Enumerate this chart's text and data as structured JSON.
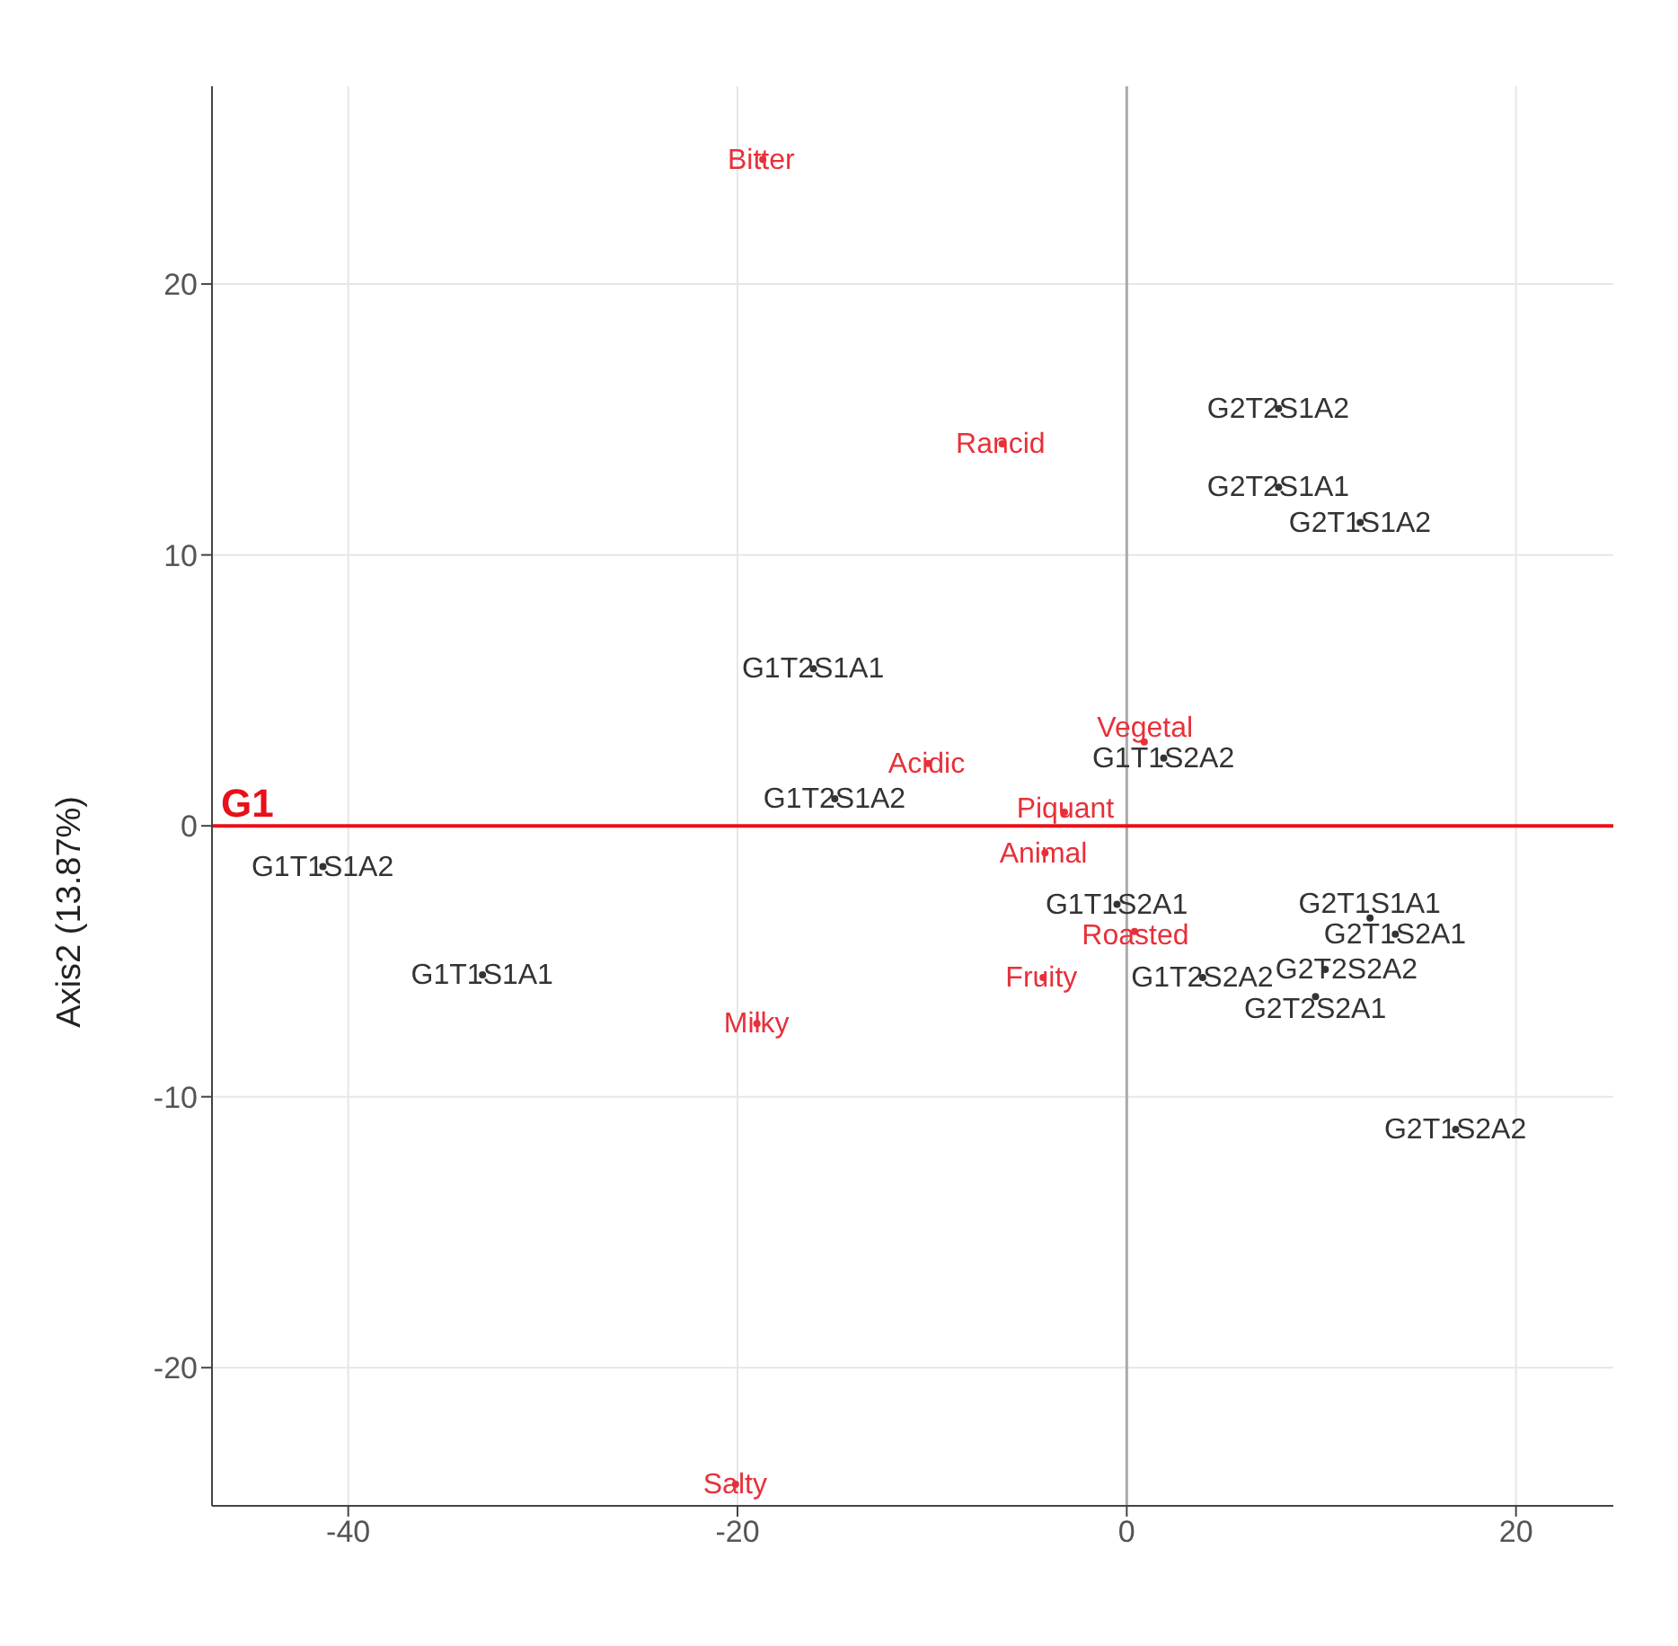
{
  "chart_data": {
    "type": "scatter",
    "ylabel": "Axis2 (13.87%)",
    "marker": "circle",
    "grid": true,
    "xlim": [
      -47,
      25
    ],
    "xticks": [
      -40,
      -20,
      0,
      20
    ],
    "ylim": [
      -25.1,
      27.3
    ],
    "yticks": [
      -20,
      -10,
      0,
      10,
      20
    ],
    "series": [
      {
        "color": "#333333",
        "x": [
          7.8,
          7.8,
          12.0,
          -16.1,
          1.9,
          -15.0,
          -41.3,
          -33.1,
          -0.5,
          3.9,
          10.2,
          9.7,
          13.8,
          12.5,
          16.9
        ],
        "values": [
          15.4,
          12.5,
          11.2,
          5.8,
          2.5,
          1.0,
          -1.5,
          -5.5,
          -2.9,
          -5.6,
          -5.3,
          -6.3,
          -4.0,
          -3.4,
          -11.2
        ],
        "value_labels": [
          "G2T2S1A2",
          "G2T2S1A1",
          "G2T1S1A2",
          "G1T2S1A1",
          "G1T1S2A2",
          "G1T2S1A2",
          "G1T1S1A2",
          "G1T1S1A1",
          "G1T1S2A1",
          "G1T2S2A2",
          "G2T2S2A2",
          "G2T2S2A1",
          "G2T1S2A1",
          "G2T1S1A1",
          "G2T1S2A2"
        ]
      },
      {
        "color": "#e8303a",
        "x": [
          -18.7,
          -6.4,
          -10.2,
          0.9,
          -3.2,
          -4.2,
          -19.0,
          0.4,
          -4.3,
          -20.1
        ],
        "values": [
          24.6,
          14.1,
          2.3,
          3.1,
          0.5,
          -1.0,
          -7.3,
          -3.9,
          -5.6,
          -24.3
        ],
        "value_labels": [
          "Bitter",
          "Rancid",
          "Acidic",
          "Vegetal",
          "Piquant",
          "Animal",
          "Milky",
          "Roasted",
          "Fruity",
          "Salty"
        ]
      }
    ],
    "ref_lines": [
      {
        "axis": "x",
        "value": 0,
        "color": "#aaaaaa"
      },
      {
        "axis": "y",
        "value": 0,
        "label": "G1",
        "color": "#e8101a"
      }
    ]
  }
}
